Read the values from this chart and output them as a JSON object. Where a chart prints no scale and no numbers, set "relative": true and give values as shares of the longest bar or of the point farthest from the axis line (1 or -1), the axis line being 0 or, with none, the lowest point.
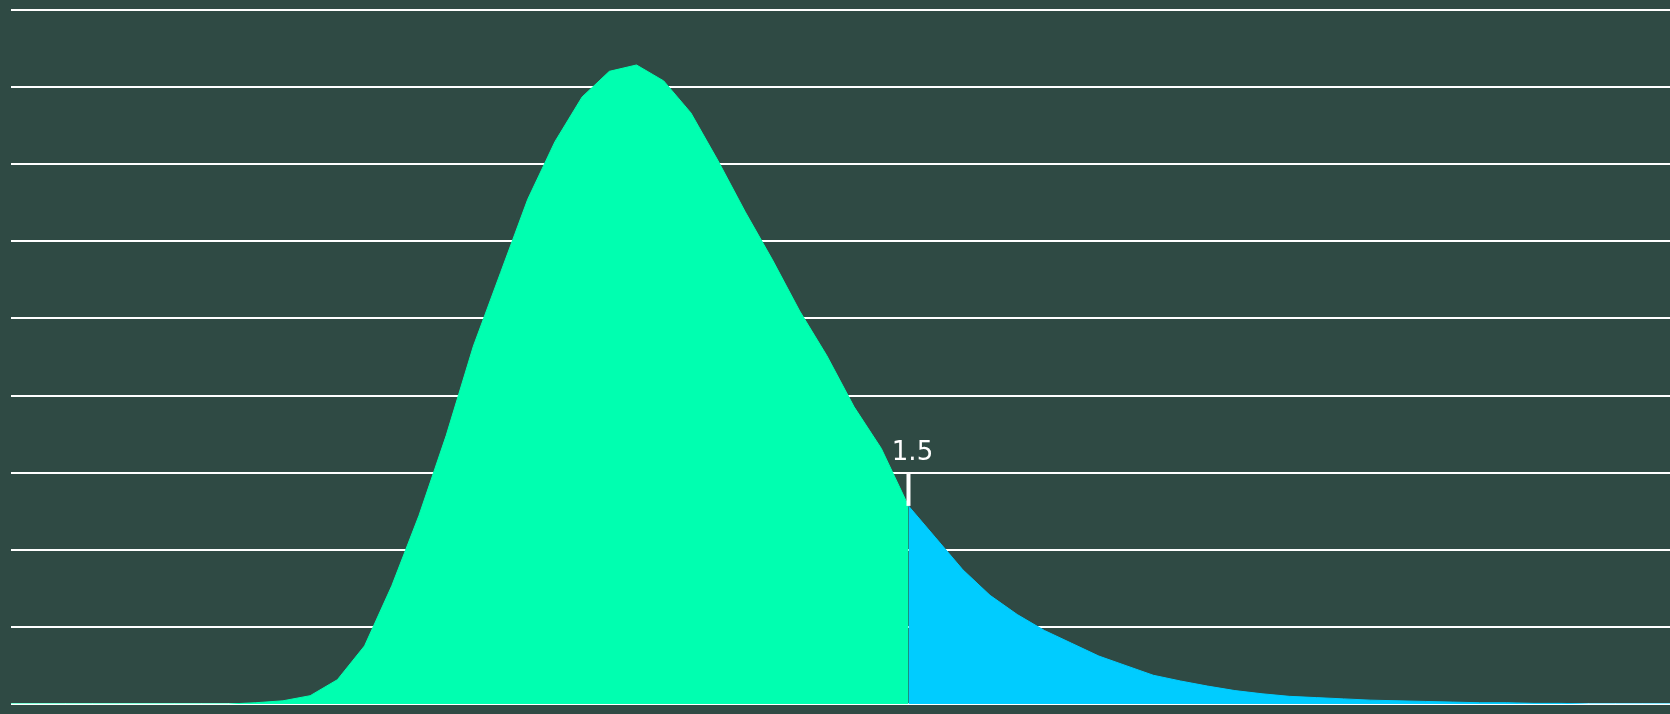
{
  "chart_data": {
    "type": "area",
    "relative": true,
    "grid": "y",
    "legend": false,
    "tick_labels": false,
    "categories": [
      null,
      null,
      null,
      null,
      null,
      null,
      null,
      null,
      null,
      null,
      null,
      null,
      null,
      null,
      null,
      null,
      null,
      null,
      null,
      null,
      null,
      null,
      null,
      null,
      null,
      null,
      null,
      null,
      null,
      null,
      null,
      null,
      null,
      null,
      null,
      null,
      null,
      null,
      null,
      null,
      null,
      null,
      null,
      null,
      null,
      null,
      null,
      null,
      null,
      null,
      null,
      null,
      null,
      null,
      null,
      null,
      null,
      null,
      null,
      null,
      null,
      null
    ],
    "series": [
      {
        "color": "#00ffb0",
        "values": [
          0,
          0,
          0,
          0,
          0,
          0,
          0,
          0,
          0,
          0.002,
          0.005,
          0.013,
          0.038,
          0.091,
          0.185,
          0.295,
          0.42,
          0.56,
          0.675,
          0.79,
          0.88,
          0.95,
          0.99,
          1,
          0.975,
          0.925,
          0.85,
          0.77,
          0.695,
          0.615,
          0.545,
          0.465,
          0.4,
          0.31,
          null,
          null,
          null,
          null,
          null,
          null,
          null,
          null,
          null,
          null,
          null,
          null,
          null,
          null,
          null,
          null,
          null,
          null,
          null,
          null,
          null,
          null,
          null,
          null,
          null,
          null,
          null,
          null
        ]
      },
      {
        "color": "#00ccff",
        "values": [
          null,
          null,
          null,
          null,
          null,
          null,
          null,
          null,
          null,
          null,
          null,
          null,
          null,
          null,
          null,
          null,
          null,
          null,
          null,
          null,
          null,
          null,
          null,
          null,
          null,
          null,
          null,
          null,
          null,
          null,
          null,
          null,
          null,
          0.31,
          0.26,
          0.21,
          0.17,
          0.14,
          0.115,
          0.095,
          0.075,
          0.06,
          0.045,
          0.036,
          0.028,
          0.021,
          0.016,
          0.012,
          0.01,
          0.008,
          0.006,
          0.005,
          0.004,
          0.003,
          0.002,
          0.002,
          0.001,
          0.001,
          0,
          0,
          0,
          0
        ]
      }
    ],
    "annotations": [
      "1.5"
    ]
  }
}
